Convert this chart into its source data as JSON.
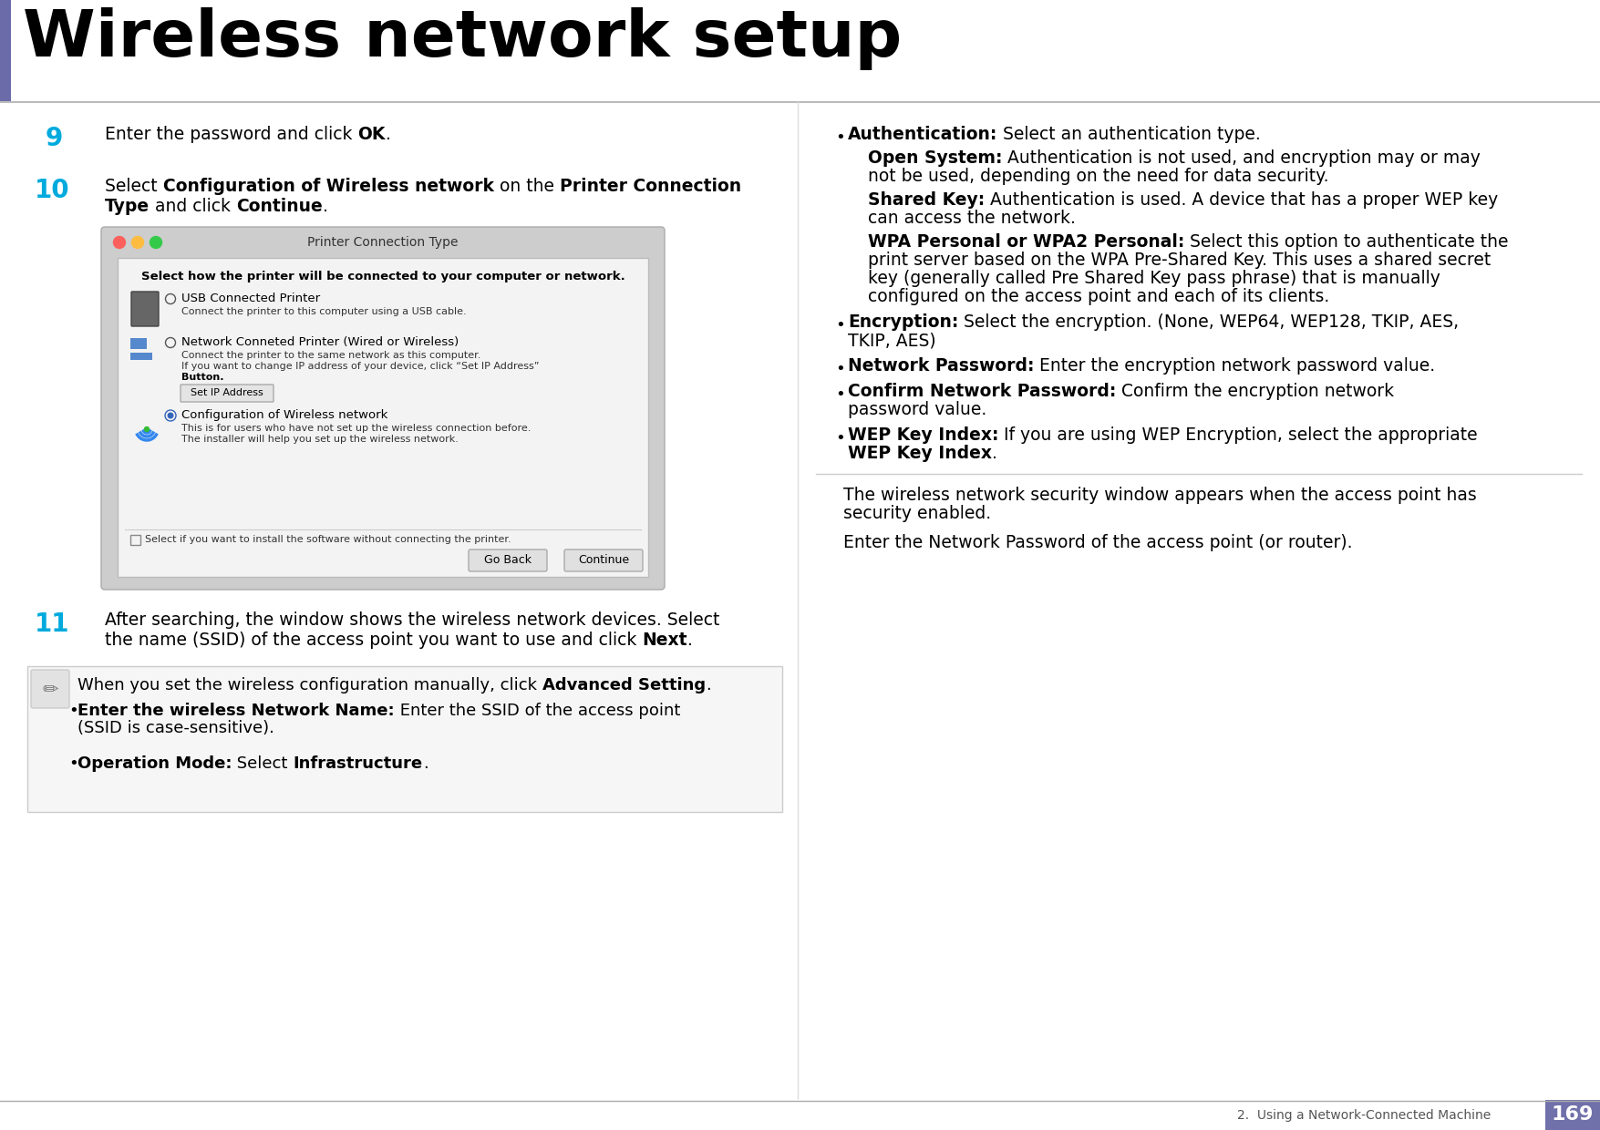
{
  "title": "Wireless network setup",
  "accent_color": "#6b6baa",
  "step_number_color": "#00aadd",
  "bg_color": "#ffffff",
  "footer_text": "2.  Using a Network-Connected Machine",
  "footer_page": "169",
  "footer_bg": "#7070aa",
  "dialog_title": "Printer Connection Type",
  "dialog_bold_text": "Select how the printer will be connected to your computer or network.",
  "dialog_opt1": "USB Connected Printer",
  "dialog_opt1_sub": "Connect the printer to this computer using a USB cable.",
  "dialog_opt2": "Network Conneted Printer (Wired or Wireless)",
  "dialog_opt2_sub1": "Connect the printer to the same network as this computer.",
  "dialog_opt2_sub2": "If you want to change IP address of your device, click “Set IP Address”",
  "dialog_opt2_sub3": "Button.",
  "dialog_opt2_btn": "Set IP Address",
  "dialog_opt3": "Configuration of Wireless network",
  "dialog_opt3_sub1": "This is for users who have not set up the wireless connection before.",
  "dialog_opt3_sub2": "The installer will help you set up the wireless network.",
  "dialog_checkbox": "Select if you want to install the software without connecting the printer.",
  "dialog_btn1": "Go Back",
  "dialog_btn2": "Continue"
}
